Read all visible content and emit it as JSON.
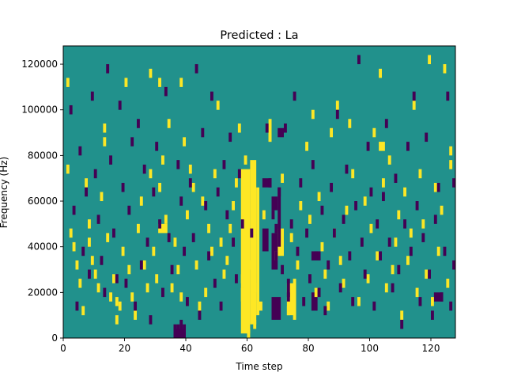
{
  "chart_data": {
    "type": "heatmap",
    "title": "Predicted : La",
    "xlabel": "Time step",
    "ylabel": "Frequency (Hz)",
    "xlim": [
      0,
      128
    ],
    "ylim": [
      0,
      128000
    ],
    "x_ticks": [
      0,
      20,
      40,
      60,
      80,
      100,
      120
    ],
    "y_ticks": [
      0,
      20000,
      40000,
      60000,
      80000,
      100000,
      120000
    ],
    "x_tick_labels": [
      "0",
      "20",
      "40",
      "60",
      "80",
      "100",
      "120"
    ],
    "y_tick_labels": [
      "0",
      "20000",
      "40000",
      "60000",
      "80000",
      "100000",
      "120000"
    ],
    "colormap": "viridis",
    "colors": {
      "background": "#21918c",
      "high": "#fde725",
      "low": "#440154"
    },
    "grid": false,
    "legend": "none",
    "cell_width_steps": 1,
    "cell_height_hz": 2000,
    "high_cells": [
      [
        1,
        110
      ],
      [
        1,
        72
      ],
      [
        2,
        44
      ],
      [
        3,
        38
      ],
      [
        4,
        30
      ],
      [
        5,
        22
      ],
      [
        6,
        10
      ],
      [
        7,
        66
      ],
      [
        8,
        48
      ],
      [
        8,
        40
      ],
      [
        9,
        32
      ],
      [
        10,
        26
      ],
      [
        11,
        20
      ],
      [
        12,
        60
      ],
      [
        13,
        90
      ],
      [
        13,
        84
      ],
      [
        14,
        42
      ],
      [
        15,
        16
      ],
      [
        16,
        24
      ],
      [
        17,
        14
      ],
      [
        17,
        6
      ],
      [
        18,
        12
      ],
      [
        19,
        36
      ],
      [
        20,
        110
      ],
      [
        21,
        28
      ],
      [
        22,
        16
      ],
      [
        23,
        8
      ],
      [
        24,
        46
      ],
      [
        25,
        58
      ],
      [
        26,
        30
      ],
      [
        27,
        20
      ],
      [
        28,
        70
      ],
      [
        28,
        114
      ],
      [
        29,
        36
      ],
      [
        30,
        24
      ],
      [
        31,
        110
      ],
      [
        31,
        64
      ],
      [
        32,
        76
      ],
      [
        33,
        50
      ],
      [
        34,
        92
      ],
      [
        35,
        20
      ],
      [
        36,
        40
      ],
      [
        37,
        28
      ],
      [
        38,
        110
      ],
      [
        38,
        16
      ],
      [
        39,
        84
      ],
      [
        40,
        52
      ],
      [
        41,
        72
      ],
      [
        42,
        64
      ],
      [
        43,
        30
      ],
      [
        44,
        12
      ],
      [
        45,
        58
      ],
      [
        46,
        18
      ],
      [
        47,
        46
      ],
      [
        48,
        36
      ],
      [
        49,
        70
      ],
      [
        50,
        100
      ],
      [
        51,
        40
      ],
      [
        52,
        26
      ],
      [
        53,
        32
      ],
      [
        54,
        46
      ],
      [
        55,
        56
      ],
      [
        56,
        66
      ],
      [
        57,
        90
      ],
      [
        58,
        24
      ],
      [
        59,
        76
      ],
      [
        60,
        30
      ],
      [
        62,
        20
      ],
      [
        64,
        12
      ],
      [
        65,
        52
      ],
      [
        67,
        86
      ],
      [
        69,
        34
      ],
      [
        71,
        68
      ],
      [
        73,
        10
      ],
      [
        74,
        42
      ],
      [
        76,
        30
      ],
      [
        77,
        56
      ],
      [
        79,
        82
      ],
      [
        80,
        50
      ],
      [
        81,
        96
      ],
      [
        82,
        18
      ],
      [
        83,
        60
      ],
      [
        84,
        38
      ],
      [
        85,
        26
      ],
      [
        86,
        12
      ],
      [
        87,
        88
      ],
      [
        88,
        44
      ],
      [
        89,
        100
      ],
      [
        90,
        32
      ],
      [
        91,
        22
      ],
      [
        92,
        54
      ],
      [
        93,
        92
      ],
      [
        94,
        70
      ],
      [
        96,
        14
      ],
      [
        98,
        58
      ],
      [
        99,
        24
      ],
      [
        100,
        46
      ],
      [
        101,
        88
      ],
      [
        102,
        34
      ],
      [
        103,
        114
      ],
      [
        104,
        66
      ],
      [
        105,
        20
      ],
      [
        106,
        76
      ],
      [
        107,
        28
      ],
      [
        108,
        40
      ],
      [
        109,
        52
      ],
      [
        110,
        8
      ],
      [
        111,
        62
      ],
      [
        112,
        32
      ],
      [
        113,
        44
      ],
      [
        114,
        100
      ],
      [
        115,
        18
      ],
      [
        116,
        70
      ],
      [
        117,
        48
      ],
      [
        118,
        26
      ],
      [
        119,
        120
      ],
      [
        120,
        14
      ],
      [
        121,
        64
      ],
      [
        122,
        36
      ],
      [
        123,
        54
      ],
      [
        124,
        116
      ],
      [
        125,
        22
      ],
      [
        126,
        80
      ],
      [
        126,
        74
      ]
    ],
    "low_cells": [
      [
        2,
        98
      ],
      [
        3,
        54
      ],
      [
        4,
        12
      ],
      [
        5,
        80
      ],
      [
        6,
        36
      ],
      [
        7,
        62
      ],
      [
        8,
        26
      ],
      [
        9,
        104
      ],
      [
        10,
        70
      ],
      [
        11,
        50
      ],
      [
        12,
        32
      ],
      [
        13,
        18
      ],
      [
        14,
        116
      ],
      [
        15,
        76
      ],
      [
        16,
        44
      ],
      [
        17,
        24
      ],
      [
        18,
        100
      ],
      [
        19,
        64
      ],
      [
        20,
        22
      ],
      [
        21,
        54
      ],
      [
        22,
        84
      ],
      [
        23,
        12
      ],
      [
        24,
        92
      ],
      [
        25,
        30
      ],
      [
        26,
        72
      ],
      [
        27,
        40
      ],
      [
        28,
        6
      ],
      [
        29,
        62
      ],
      [
        30,
        82
      ],
      [
        31,
        48
      ],
      [
        32,
        18
      ],
      [
        33,
        106
      ],
      [
        34,
        42
      ],
      [
        35,
        28
      ],
      [
        36,
        2
      ],
      [
        37,
        2
      ],
      [
        38,
        4
      ],
      [
        39,
        2
      ],
      [
        37,
        74
      ],
      [
        38,
        58
      ],
      [
        39,
        36
      ],
      [
        40,
        14
      ],
      [
        41,
        66
      ],
      [
        42,
        42
      ],
      [
        43,
        116
      ],
      [
        44,
        8
      ],
      [
        45,
        88
      ],
      [
        46,
        56
      ],
      [
        47,
        34
      ],
      [
        48,
        104
      ],
      [
        49,
        22
      ],
      [
        50,
        62
      ],
      [
        51,
        12
      ],
      [
        52,
        74
      ],
      [
        53,
        52
      ],
      [
        54,
        86
      ],
      [
        55,
        40
      ],
      [
        56,
        24
      ],
      [
        57,
        70
      ],
      [
        58,
        48
      ],
      [
        61,
        44
      ],
      [
        66,
        90
      ],
      [
        67,
        66
      ],
      [
        68,
        52
      ],
      [
        69,
        46
      ],
      [
        69,
        34
      ],
      [
        70,
        62
      ],
      [
        71,
        28
      ],
      [
        72,
        90
      ],
      [
        73,
        16
      ],
      [
        74,
        48
      ],
      [
        75,
        104
      ],
      [
        76,
        36
      ],
      [
        77,
        66
      ],
      [
        78,
        14
      ],
      [
        79,
        44
      ],
      [
        80,
        24
      ],
      [
        81,
        74
      ],
      [
        82,
        34
      ],
      [
        83,
        18
      ],
      [
        84,
        54
      ],
      [
        85,
        10
      ],
      [
        86,
        30
      ],
      [
        87,
        64
      ],
      [
        88,
        44
      ],
      [
        89,
        96
      ],
      [
        90,
        20
      ],
      [
        91,
        50
      ],
      [
        92,
        72
      ],
      [
        93,
        34
      ],
      [
        94,
        14
      ],
      [
        95,
        56
      ],
      [
        96,
        120
      ],
      [
        97,
        40
      ],
      [
        98,
        26
      ],
      [
        99,
        82
      ],
      [
        100,
        62
      ],
      [
        101,
        12
      ],
      [
        102,
        48
      ],
      [
        103,
        34
      ],
      [
        104,
        60
      ],
      [
        105,
        92
      ],
      [
        106,
        40
      ],
      [
        107,
        20
      ],
      [
        108,
        68
      ],
      [
        109,
        28
      ],
      [
        110,
        4
      ],
      [
        111,
        48
      ],
      [
        112,
        82
      ],
      [
        113,
        36
      ],
      [
        114,
        104
      ],
      [
        115,
        56
      ],
      [
        116,
        14
      ],
      [
        117,
        42
      ],
      [
        118,
        86
      ],
      [
        119,
        26
      ],
      [
        120,
        8
      ],
      [
        121,
        50
      ],
      [
        122,
        64
      ],
      [
        123,
        16
      ],
      [
        124,
        36
      ],
      [
        125,
        104
      ],
      [
        126,
        12
      ],
      [
        127,
        66
      ],
      [
        127,
        30
      ]
    ],
    "high_blocks": [
      {
        "x0": 58,
        "x1": 61,
        "y0": 2000,
        "y1": 74000
      },
      {
        "x0": 61,
        "x1": 63,
        "y0": 6000,
        "y1": 78000
      },
      {
        "x0": 63,
        "x1": 64,
        "y0": 10000,
        "y1": 66000
      },
      {
        "x0": 60,
        "x1": 61,
        "y0": 0,
        "y1": 4000
      },
      {
        "x0": 62,
        "x1": 63,
        "y0": 4000,
        "y1": 8000
      },
      {
        "x0": 67,
        "x1": 68,
        "y0": 86000,
        "y1": 96000
      },
      {
        "x0": 70,
        "x1": 72,
        "y0": 36000,
        "y1": 48000
      },
      {
        "x0": 73,
        "x1": 76,
        "y0": 10000,
        "y1": 24000
      },
      {
        "x0": 75,
        "x1": 76,
        "y0": 8000,
        "y1": 26000
      },
      {
        "x0": 103,
        "x1": 105,
        "y0": 82000,
        "y1": 86000
      },
      {
        "x0": 31,
        "x1": 34,
        "y0": 46000,
        "y1": 50000
      },
      {
        "x0": 58,
        "x1": 59,
        "y0": 16000,
        "y1": 22000
      }
    ],
    "low_blocks": [
      {
        "x0": 36,
        "x1": 40,
        "y0": 0,
        "y1": 4000
      },
      {
        "x0": 68,
        "x1": 71,
        "y0": 8000,
        "y1": 18000
      },
      {
        "x0": 68,
        "x1": 70,
        "y0": 30000,
        "y1": 46000
      },
      {
        "x0": 68,
        "x1": 70,
        "y0": 56000,
        "y1": 62000
      },
      {
        "x0": 70,
        "x1": 71,
        "y0": 40000,
        "y1": 66000
      },
      {
        "x0": 70,
        "x1": 72,
        "y0": 88000,
        "y1": 92000
      },
      {
        "x0": 65,
        "x1": 68,
        "y0": 66000,
        "y1": 70000
      },
      {
        "x0": 73,
        "x1": 74,
        "y0": 18000,
        "y1": 26000
      },
      {
        "x0": 81,
        "x1": 84,
        "y0": 34000,
        "y1": 38000
      },
      {
        "x0": 81,
        "x1": 83,
        "y0": 12000,
        "y1": 20000
      },
      {
        "x0": 121,
        "x1": 124,
        "y0": 16000,
        "y1": 20000
      },
      {
        "x0": 65,
        "x1": 67,
        "y0": 38000,
        "y1": 48000
      }
    ]
  }
}
